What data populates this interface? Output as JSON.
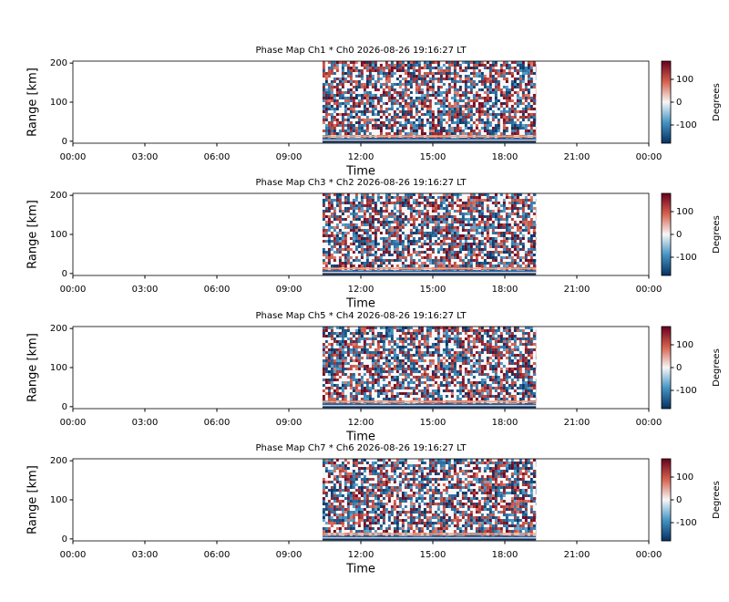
{
  "chart_data": [
    {
      "type": "heatmap",
      "title": "Phase Map Ch1 * Ch0 2026-08-26 19:16:27 LT",
      "xlabel": "Time",
      "ylabel": "Range [km]",
      "xlim": [
        0,
        24
      ],
      "xticks": [
        {
          "value": 0,
          "label": "00:00"
        },
        {
          "value": 3,
          "label": "03:00"
        },
        {
          "value": 6,
          "label": "06:00"
        },
        {
          "value": 9,
          "label": "09:00"
        },
        {
          "value": 12,
          "label": "12:00"
        },
        {
          "value": 15,
          "label": "15:00"
        },
        {
          "value": 18,
          "label": "18:00"
        },
        {
          "value": 21,
          "label": "21:00"
        },
        {
          "value": 24,
          "label": "00:00"
        }
      ],
      "ylim": [
        -5,
        205
      ],
      "yticks": [
        0,
        100,
        200
      ],
      "data_xlim": [
        10.4,
        19.3
      ],
      "colorbar_label": "Degrees",
      "clim": [
        -180,
        180
      ],
      "cticks": [
        -100,
        0,
        100
      ],
      "colormap": "RdBu_r"
    },
    {
      "type": "heatmap",
      "title": "Phase Map Ch3 * Ch2 2026-08-26 19:16:27 LT",
      "xlabel": "Time",
      "ylabel": "Range [km]",
      "xlim": [
        0,
        24
      ],
      "xticks": [
        {
          "value": 0,
          "label": "00:00"
        },
        {
          "value": 3,
          "label": "03:00"
        },
        {
          "value": 6,
          "label": "06:00"
        },
        {
          "value": 9,
          "label": "09:00"
        },
        {
          "value": 12,
          "label": "12:00"
        },
        {
          "value": 15,
          "label": "15:00"
        },
        {
          "value": 18,
          "label": "18:00"
        },
        {
          "value": 21,
          "label": "21:00"
        },
        {
          "value": 24,
          "label": "00:00"
        }
      ],
      "ylim": [
        -5,
        205
      ],
      "yticks": [
        0,
        100,
        200
      ],
      "data_xlim": [
        10.4,
        19.3
      ],
      "colorbar_label": "Degrees",
      "clim": [
        -180,
        180
      ],
      "cticks": [
        -100,
        0,
        100
      ],
      "colormap": "RdBu_r"
    },
    {
      "type": "heatmap",
      "title": "Phase Map Ch5 * Ch4 2026-08-26 19:16:27 LT",
      "xlabel": "Time",
      "ylabel": "Range [km]",
      "xlim": [
        0,
        24
      ],
      "xticks": [
        {
          "value": 0,
          "label": "00:00"
        },
        {
          "value": 3,
          "label": "03:00"
        },
        {
          "value": 6,
          "label": "06:00"
        },
        {
          "value": 9,
          "label": "09:00"
        },
        {
          "value": 12,
          "label": "12:00"
        },
        {
          "value": 15,
          "label": "15:00"
        },
        {
          "value": 18,
          "label": "18:00"
        },
        {
          "value": 21,
          "label": "21:00"
        },
        {
          "value": 24,
          "label": "00:00"
        }
      ],
      "ylim": [
        -5,
        205
      ],
      "yticks": [
        0,
        100,
        200
      ],
      "data_xlim": [
        10.4,
        19.3
      ],
      "colorbar_label": "Degrees",
      "clim": [
        -180,
        180
      ],
      "cticks": [
        -100,
        0,
        100
      ],
      "colormap": "RdBu_r"
    },
    {
      "type": "heatmap",
      "title": "Phase Map Ch7 * Ch6 2026-08-26 19:16:27 LT",
      "xlabel": "Time",
      "ylabel": "Range [km]",
      "xlim": [
        0,
        24
      ],
      "xticks": [
        {
          "value": 0,
          "label": "00:00"
        },
        {
          "value": 3,
          "label": "03:00"
        },
        {
          "value": 6,
          "label": "06:00"
        },
        {
          "value": 9,
          "label": "09:00"
        },
        {
          "value": 12,
          "label": "12:00"
        },
        {
          "value": 15,
          "label": "15:00"
        },
        {
          "value": 18,
          "label": "18:00"
        },
        {
          "value": 21,
          "label": "21:00"
        },
        {
          "value": 24,
          "label": "00:00"
        }
      ],
      "ylim": [
        -5,
        205
      ],
      "yticks": [
        0,
        100,
        200
      ],
      "data_xlim": [
        10.4,
        19.3
      ],
      "colorbar_label": "Degrees",
      "clim": [
        -180,
        180
      ],
      "cticks": [
        -100,
        0,
        100
      ],
      "colormap": "RdBu_r"
    }
  ]
}
